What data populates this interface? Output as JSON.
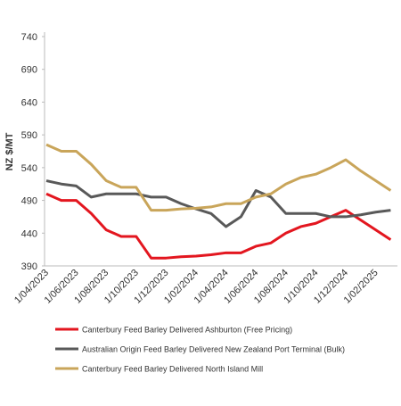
{
  "chart_data": {
    "type": "line",
    "y_label": "NZ $/MT",
    "categories": [
      "1/04/2023",
      null,
      "1/06/2023",
      null,
      "1/08/2023",
      null,
      "1/10/2023",
      null,
      "1/12/2023",
      null,
      "1/02/2024",
      null,
      "1/04/2024",
      null,
      "1/06/2024",
      null,
      "1/08/2024",
      null,
      "1/10/2024",
      null,
      "1/12/2024",
      null,
      "1/02/2025",
      null
    ],
    "series": [
      {
        "name": "Canterbury Feed Barley Delivered Ashburton (Free Pricing)",
        "color": "#e3161f",
        "values": [
          500,
          490,
          490,
          470,
          445,
          435,
          435,
          402,
          402,
          404,
          405,
          407,
          410,
          410,
          420,
          425,
          440,
          450,
          455,
          465,
          475,
          460,
          445,
          430
        ]
      },
      {
        "name": "Australian Origin Feed Barley Delivered New Zealand Port Terminal (Bulk)",
        "color": "#595959",
        "values": [
          520,
          515,
          512,
          495,
          500,
          500,
          500,
          495,
          495,
          485,
          477,
          470,
          450,
          465,
          505,
          495,
          470,
          470,
          470,
          465,
          465,
          468,
          472,
          475
        ]
      },
      {
        "name": "Canterbury Feed Barley Delivered North Island Mill",
        "color": "#c9a55a",
        "values": [
          575,
          565,
          565,
          545,
          520,
          510,
          510,
          475,
          475,
          477,
          478,
          480,
          485,
          485,
          495,
          500,
          515,
          525,
          530,
          540,
          552,
          535,
          520,
          505
        ]
      }
    ],
    "ylim": [
      390,
      740
    ],
    "yticks": [
      390,
      440,
      490,
      540,
      590,
      640,
      690,
      740
    ]
  }
}
